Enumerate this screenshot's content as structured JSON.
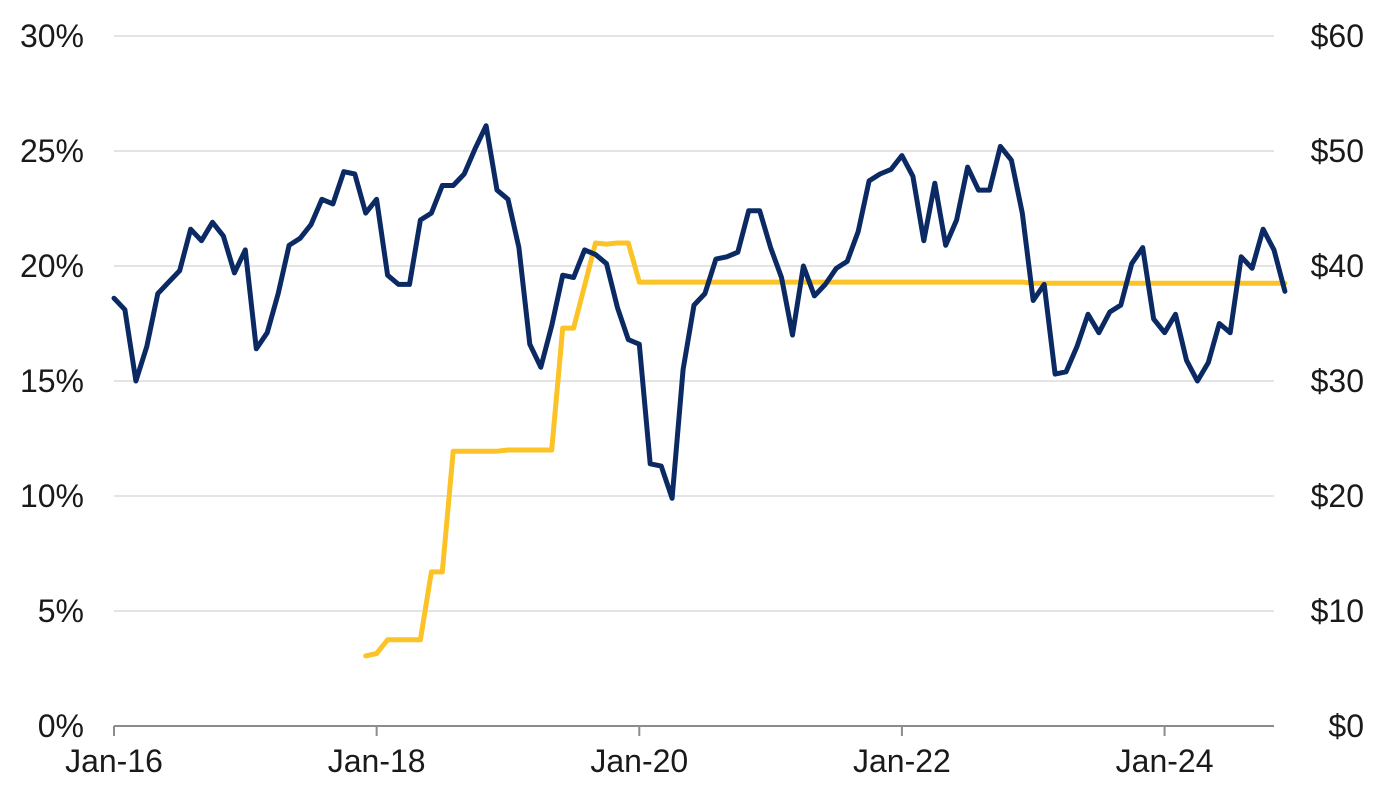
{
  "chart_data": {
    "type": "line",
    "title": "",
    "xlabel": "",
    "ylabel_left": "",
    "ylabel_right": "",
    "x_axis": {
      "type": "date",
      "range": [
        "2016-01",
        "2024-11"
      ],
      "tick_labels": [
        "Jan-16",
        "Jan-18",
        "Jan-20",
        "Jan-22",
        "Jan-24"
      ],
      "tick_dates": [
        "2016-01",
        "2018-01",
        "2020-01",
        "2022-01",
        "2024-01"
      ]
    },
    "y_left": {
      "min": 0,
      "max": 30,
      "tick_values": [
        0,
        5,
        10,
        15,
        20,
        25,
        30
      ],
      "tick_labels": [
        "0%",
        "5%",
        "10%",
        "15%",
        "20%",
        "25%",
        "30%"
      ]
    },
    "y_right": {
      "min": 0,
      "max": 60,
      "tick_values": [
        0,
        10,
        20,
        30,
        40,
        50,
        60
      ],
      "tick_labels": [
        "$0",
        "$10",
        "$20",
        "$30",
        "$40",
        "$50",
        "$60"
      ]
    },
    "grid": "horizontal",
    "legend": "none",
    "series": [
      {
        "axis": "left",
        "color": "#0b2a63",
        "points": [
          [
            "2016-01",
            18.6
          ],
          [
            "2016-02",
            18.1
          ],
          [
            "2016-03",
            15.0
          ],
          [
            "2016-04",
            16.5
          ],
          [
            "2016-05",
            18.8
          ],
          [
            "2016-06",
            19.3
          ],
          [
            "2016-07",
            19.8
          ],
          [
            "2016-08",
            21.6
          ],
          [
            "2016-09",
            21.1
          ],
          [
            "2016-10",
            21.9
          ],
          [
            "2016-11",
            21.3
          ],
          [
            "2016-12",
            19.7
          ],
          [
            "2017-01",
            20.7
          ],
          [
            "2017-02",
            16.4
          ],
          [
            "2017-03",
            17.1
          ],
          [
            "2017-04",
            18.8
          ],
          [
            "2017-05",
            20.9
          ],
          [
            "2017-06",
            21.2
          ],
          [
            "2017-07",
            21.8
          ],
          [
            "2017-08",
            22.9
          ],
          [
            "2017-09",
            22.7
          ],
          [
            "2017-10",
            24.1
          ],
          [
            "2017-11",
            24.0
          ],
          [
            "2017-12",
            22.3
          ],
          [
            "2018-01",
            22.9
          ],
          [
            "2018-02",
            19.6
          ],
          [
            "2018-03",
            19.2
          ],
          [
            "2018-04",
            19.2
          ],
          [
            "2018-05",
            22.0
          ],
          [
            "2018-06",
            22.3
          ],
          [
            "2018-07",
            23.5
          ],
          [
            "2018-08",
            23.5
          ],
          [
            "2018-09",
            24.0
          ],
          [
            "2018-10",
            25.1
          ],
          [
            "2018-11",
            26.1
          ],
          [
            "2018-12",
            23.3
          ],
          [
            "2019-01",
            22.9
          ],
          [
            "2019-02",
            20.8
          ],
          [
            "2019-03",
            16.6
          ],
          [
            "2019-04",
            15.6
          ],
          [
            "2019-05",
            17.4
          ],
          [
            "2019-06",
            19.6
          ],
          [
            "2019-07",
            19.5
          ],
          [
            "2019-08",
            20.7
          ],
          [
            "2019-09",
            20.5
          ],
          [
            "2019-10",
            20.1
          ],
          [
            "2019-11",
            18.2
          ],
          [
            "2019-12",
            16.8
          ],
          [
            "2020-01",
            16.6
          ],
          [
            "2020-02",
            11.4
          ],
          [
            "2020-03",
            11.3
          ],
          [
            "2020-04",
            9.9
          ],
          [
            "2020-05",
            15.5
          ],
          [
            "2020-06",
            18.3
          ],
          [
            "2020-07",
            18.8
          ],
          [
            "2020-08",
            20.3
          ],
          [
            "2020-09",
            20.4
          ],
          [
            "2020-10",
            20.6
          ],
          [
            "2020-11",
            22.4
          ],
          [
            "2020-12",
            22.4
          ],
          [
            "2021-01",
            20.8
          ],
          [
            "2021-02",
            19.5
          ],
          [
            "2021-03",
            17.0
          ],
          [
            "2021-04",
            20.0
          ],
          [
            "2021-05",
            18.7
          ],
          [
            "2021-06",
            19.2
          ],
          [
            "2021-07",
            19.9
          ],
          [
            "2021-08",
            20.2
          ],
          [
            "2021-09",
            21.5
          ],
          [
            "2021-10",
            23.7
          ],
          [
            "2021-11",
            24.0
          ],
          [
            "2021-12",
            24.2
          ],
          [
            "2022-01",
            24.8
          ],
          [
            "2022-02",
            23.9
          ],
          [
            "2022-03",
            21.1
          ],
          [
            "2022-04",
            23.6
          ],
          [
            "2022-05",
            20.9
          ],
          [
            "2022-06",
            22.0
          ],
          [
            "2022-07",
            24.3
          ],
          [
            "2022-08",
            23.3
          ],
          [
            "2022-09",
            23.3
          ],
          [
            "2022-10",
            25.2
          ],
          [
            "2022-11",
            24.6
          ],
          [
            "2022-12",
            22.3
          ],
          [
            "2023-01",
            18.5
          ],
          [
            "2023-02",
            19.2
          ],
          [
            "2023-03",
            15.3
          ],
          [
            "2023-04",
            15.4
          ],
          [
            "2023-05",
            16.5
          ],
          [
            "2023-06",
            17.9
          ],
          [
            "2023-07",
            17.1
          ],
          [
            "2023-08",
            18.0
          ],
          [
            "2023-09",
            18.3
          ],
          [
            "2023-10",
            20.1
          ],
          [
            "2023-11",
            20.8
          ],
          [
            "2023-12",
            17.7
          ],
          [
            "2024-01",
            17.1
          ],
          [
            "2024-02",
            17.9
          ],
          [
            "2024-03",
            15.9
          ],
          [
            "2024-04",
            15.0
          ],
          [
            "2024-05",
            15.8
          ],
          [
            "2024-06",
            17.5
          ],
          [
            "2024-07",
            17.1
          ],
          [
            "2024-08",
            20.4
          ],
          [
            "2024-09",
            19.9
          ],
          [
            "2024-10",
            21.6
          ],
          [
            "2024-11",
            20.7
          ],
          [
            "2024-12",
            18.9
          ]
        ]
      },
      {
        "axis": "right",
        "color": "#fcc326",
        "points": [
          [
            "2017-12",
            6.1
          ],
          [
            "2018-01",
            6.3
          ],
          [
            "2018-02",
            7.5
          ],
          [
            "2018-03",
            7.5
          ],
          [
            "2018-04",
            7.5
          ],
          [
            "2018-05",
            7.5
          ],
          [
            "2018-06",
            13.4
          ],
          [
            "2018-07",
            13.4
          ],
          [
            "2018-08",
            23.9
          ],
          [
            "2018-09",
            23.9
          ],
          [
            "2018-10",
            23.9
          ],
          [
            "2018-11",
            23.9
          ],
          [
            "2018-12",
            23.9
          ],
          [
            "2019-01",
            24.0
          ],
          [
            "2019-02",
            24.0
          ],
          [
            "2019-03",
            24.0
          ],
          [
            "2019-04",
            24.0
          ],
          [
            "2019-05",
            24.0
          ],
          [
            "2019-06",
            34.6
          ],
          [
            "2019-07",
            34.6
          ],
          [
            "2019-08",
            38.3
          ],
          [
            "2019-09",
            42.0
          ],
          [
            "2019-10",
            41.9
          ],
          [
            "2019-11",
            42.0
          ],
          [
            "2019-12",
            42.0
          ],
          [
            "2020-01",
            38.6
          ],
          [
            "2020-02",
            38.6
          ],
          [
            "2020-03",
            38.6
          ],
          [
            "2020-06",
            38.6
          ],
          [
            "2021-01",
            38.6
          ],
          [
            "2022-01",
            38.6
          ],
          [
            "2022-12",
            38.6
          ],
          [
            "2023-01",
            38.5
          ],
          [
            "2023-06",
            38.5
          ],
          [
            "2024-01",
            38.5
          ],
          [
            "2024-12",
            38.5
          ]
        ]
      }
    ]
  }
}
